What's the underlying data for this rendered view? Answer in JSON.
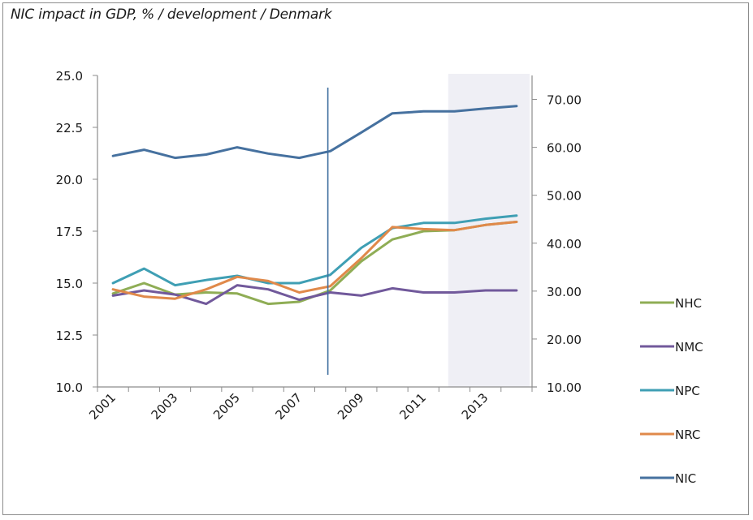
{
  "chart_data": {
    "type": "line",
    "title": "NIC impact in GDP, % / development / Denmark",
    "xlabel": "",
    "ylabel": "",
    "y2label": "",
    "categories": [
      "2001",
      "2002",
      "2003",
      "2004",
      "2005",
      "2006",
      "2007",
      "2008",
      "2009",
      "2010",
      "2011",
      "2012",
      "2013",
      "2014"
    ],
    "x_tick_labels": [
      "2001",
      "2003",
      "2005",
      "2007",
      "2009",
      "2011",
      "2013"
    ],
    "ylim": [
      10.0,
      25.0
    ],
    "y_ticks": [
      "10.0",
      "12.5",
      "15.0",
      "17.5",
      "20.0",
      "22.5",
      "25.0"
    ],
    "y2lim": [
      10.0,
      75.0
    ],
    "y2_ticks": [
      "10.00",
      "20.00",
      "30.00",
      "40.00",
      "50.00",
      "60.00",
      "70.00"
    ],
    "grid": false,
    "legend_position": "right",
    "series": [
      {
        "name": "NHC",
        "axis": "left",
        "color": "#8fad55",
        "values": [
          14.5,
          15.0,
          14.45,
          14.55,
          14.5,
          14.0,
          14.1,
          14.65,
          16.05,
          17.1,
          17.5,
          17.55,
          17.8,
          17.95
        ]
      },
      {
        "name": "NMC",
        "axis": "left",
        "color": "#71599b",
        "values": [
          14.4,
          14.65,
          14.45,
          14.0,
          14.9,
          14.7,
          14.2,
          14.55,
          14.4,
          14.75,
          14.55,
          14.55,
          14.65,
          14.65
        ]
      },
      {
        "name": "NPC",
        "axis": "left",
        "color": "#3f9fb4",
        "values": [
          15.0,
          15.7,
          14.9,
          15.15,
          15.35,
          15.0,
          15.0,
          15.4,
          16.7,
          17.65,
          17.9,
          17.9,
          18.1,
          18.25
        ]
      },
      {
        "name": "NRC",
        "axis": "left",
        "color": "#e0894a",
        "values": [
          14.7,
          14.35,
          14.25,
          14.7,
          15.3,
          15.1,
          14.55,
          14.85,
          16.2,
          17.7,
          17.6,
          17.55,
          17.8,
          17.95
        ]
      },
      {
        "name": "NIC",
        "axis": "right",
        "color": "#46719f",
        "values": [
          58.2,
          59.5,
          57.8,
          58.5,
          60.0,
          58.7,
          57.8,
          59.2,
          63.1,
          67.1,
          67.5,
          67.5,
          68.1,
          68.6
        ]
      }
    ],
    "annotations": {
      "vertical_marker_at": "2008",
      "shaded_range": [
        "2012",
        "2014"
      ]
    }
  }
}
